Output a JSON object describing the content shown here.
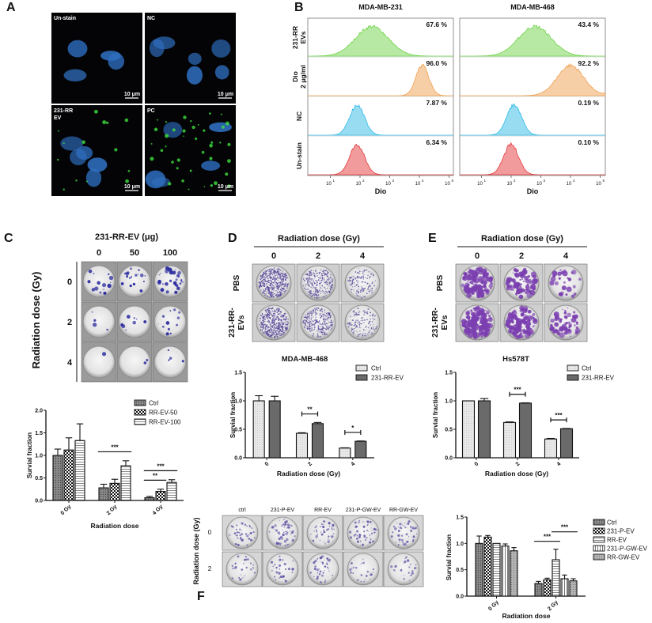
{
  "panel_labels": [
    "A",
    "B",
    "C",
    "D",
    "E",
    "F"
  ],
  "panelA": {
    "images": [
      {
        "label_lines": [
          "Un-stain"
        ],
        "scale": "10 μm",
        "ev_signal": false
      },
      {
        "label_lines": [
          "NC"
        ],
        "scale": "10 μm",
        "ev_signal": false
      },
      {
        "label_lines": [
          "231-RR",
          "EV"
        ],
        "scale": "10 μm",
        "ev_signal": true
      },
      {
        "label_lines": [
          "PC"
        ],
        "scale": "10 μm",
        "ev_signal": true
      }
    ],
    "colors": {
      "nucleus": "#2f6fc0",
      "ev": "#3ee03e",
      "background": "#040406"
    }
  },
  "panelB": {
    "columns": [
      "MDA-MB-231",
      "MDA-MB-468"
    ],
    "xlabel": "Dio",
    "tick_base": "10",
    "tick_exponents": [
      "1",
      "2",
      "3",
      "4",
      "5"
    ],
    "rows": [
      {
        "label_lines": [
          "231-RR",
          "EVs"
        ],
        "color": "#6fd34a",
        "percent": [
          "67.6 %",
          "43.4 %"
        ],
        "peak_log10": [
          2.4,
          2.8
        ]
      },
      {
        "label_lines": [
          "Dio",
          "2 μg/ml"
        ],
        "color": "#f0a050",
        "percent": [
          "96.0 %",
          "92.2 %"
        ],
        "peak_log10": [
          4.1,
          4.0
        ]
      },
      {
        "label_lines": [
          "NC"
        ],
        "color": "#31b9e6",
        "percent": [
          "7.87 %",
          "0.19 %"
        ],
        "peak_log10": [
          1.9,
          2.1
        ]
      },
      {
        "label_lines": [
          "Un-stain"
        ],
        "color": "#e5383b",
        "percent": [
          "6.34 %",
          "0.10 %"
        ],
        "peak_log10": [
          1.9,
          2.0
        ]
      }
    ]
  },
  "panelC": {
    "header": "231-RR-EV (μg)",
    "columns": [
      "0",
      "50",
      "100"
    ],
    "rows": [
      "0",
      "2",
      "4"
    ],
    "row_title": "Radiation dose (Gy)"
  },
  "panelD": {
    "header": "Radiation dose (Gy)",
    "columns": [
      "0",
      "2",
      "4"
    ],
    "rows": [
      [
        "PBS"
      ],
      [
        "231-RR-",
        "EVs"
      ]
    ]
  },
  "panelE": {
    "header": "Radiation dose (Gy)",
    "columns": [
      "0",
      "2",
      "4"
    ],
    "rows": [
      [
        "PBS"
      ],
      [
        "231-RR-",
        "EVs"
      ]
    ]
  },
  "panelF": {
    "columns": [
      "ctrl",
      "231-P-EV",
      "RR-EV",
      "231-P-GW-EV",
      "RR-GW-EV"
    ],
    "rows": [
      "0",
      "2"
    ],
    "row_title": "Radiation dose (Gy)"
  },
  "chart_data": [
    {
      "panel": "C",
      "type": "bar",
      "title": "",
      "categories": [
        "0 Gy",
        "2 Gy",
        "4 Gy"
      ],
      "xlabel": "Radiation dose",
      "ylabel": "Survial fraction",
      "ylim": [
        0,
        2.0
      ],
      "yticks": [
        "0.0",
        "0.5",
        "1.0",
        "1.5",
        "2.0"
      ],
      "legend": "top-right",
      "series": [
        {
          "name": "Ctrl",
          "values": [
            1.0,
            0.28,
            0.06
          ],
          "errors": [
            0.14,
            0.08,
            0.03
          ],
          "pattern": "dots-dark"
        },
        {
          "name": "RR-EV-50",
          "values": [
            1.12,
            0.38,
            0.2
          ],
          "errors": [
            0.27,
            0.09,
            0.05
          ],
          "pattern": "checker"
        },
        {
          "name": "RR-EV-100",
          "values": [
            1.33,
            0.77,
            0.4
          ],
          "errors": [
            0.37,
            0.11,
            0.06
          ],
          "pattern": "hstripes"
        }
      ],
      "significance": [
        {
          "category": 1,
          "from": 0,
          "to": 2,
          "label": "***"
        },
        {
          "category": 2,
          "from": 0,
          "to": 1,
          "label": "**"
        },
        {
          "category": 2,
          "from": 0,
          "to": 2,
          "label": "***"
        }
      ]
    },
    {
      "panel": "D",
      "type": "bar",
      "title": "MDA-MB-468",
      "categories": [
        "0",
        "2",
        "4"
      ],
      "xlabel": "Radiation dose (Gy)",
      "ylabel": "Survial fraction",
      "ylim": [
        0,
        1.5
      ],
      "yticks": [
        "0.0",
        "0.5",
        "1.0",
        "1.5"
      ],
      "legend": "top-right",
      "series": [
        {
          "name": "Ctrl",
          "values": [
            1.0,
            0.43,
            0.17
          ],
          "errors": [
            0.09,
            0.01,
            0.005
          ],
          "pattern": "dots-light"
        },
        {
          "name": "231-RR-EV",
          "values": [
            1.0,
            0.6,
            0.29
          ],
          "errors": [
            0.08,
            0.02,
            0.005
          ],
          "pattern": "solid-dark"
        }
      ],
      "significance": [
        {
          "category": 1,
          "from": 0,
          "to": 1,
          "label": "**"
        },
        {
          "category": 2,
          "from": 0,
          "to": 1,
          "label": "*"
        }
      ]
    },
    {
      "panel": "E",
      "type": "bar",
      "title": "Hs578T",
      "categories": [
        "0",
        "2",
        "4"
      ],
      "xlabel": "Radiation dose (Gy)",
      "ylabel": "Survial fraction",
      "ylim": [
        0,
        1.5
      ],
      "yticks": [
        "0.0",
        "0.5",
        "1.0",
        "1.5"
      ],
      "legend": "top-right",
      "series": [
        {
          "name": "Ctrl",
          "values": [
            1.0,
            0.62,
            0.33
          ],
          "errors": [
            0.0,
            0.01,
            0.01
          ],
          "pattern": "dots-light"
        },
        {
          "name": "231-RR-EV",
          "values": [
            1.0,
            0.96,
            0.51
          ],
          "errors": [
            0.04,
            0.005,
            0.005
          ],
          "pattern": "solid-dark"
        }
      ],
      "significance": [
        {
          "category": 1,
          "from": 0,
          "to": 1,
          "label": "***"
        },
        {
          "category": 2,
          "from": 0,
          "to": 1,
          "label": "***"
        }
      ]
    },
    {
      "panel": "F",
      "type": "bar",
      "title": "",
      "categories": [
        "0 Gy",
        "2 Gy"
      ],
      "xlabel": "Radiation dose",
      "ylabel": "Survial fraction",
      "ylim": [
        0,
        1.5
      ],
      "yticks": [
        "0.0",
        "0.5",
        "1.0",
        "1.5"
      ],
      "legend": "right",
      "series": [
        {
          "name": "Ctrl",
          "values": [
            1.0,
            0.24
          ],
          "errors": [
            0.14,
            0.04
          ],
          "pattern": "dots-dark"
        },
        {
          "name": "231-P-EV",
          "values": [
            1.12,
            0.31
          ],
          "errors": [
            0.03,
            0.03
          ],
          "pattern": "checker"
        },
        {
          "name": "RR-EV",
          "values": [
            1.0,
            0.69
          ],
          "errors": [
            0.0,
            0.2
          ],
          "pattern": "hstripes"
        },
        {
          "name": "231-P-GW-EV",
          "values": [
            0.95,
            0.33
          ],
          "errors": [
            0.04,
            0.07
          ],
          "pattern": "vstripes"
        },
        {
          "name": "RR-GW-EV",
          "values": [
            0.86,
            0.29
          ],
          "errors": [
            0.06,
            0.04
          ],
          "pattern": "dots-mid"
        }
      ],
      "significance": [
        {
          "category": 1,
          "from": 0,
          "to": 2,
          "label": "***"
        },
        {
          "category": 1,
          "from": 2,
          "to": 4,
          "label": "***"
        }
      ]
    }
  ]
}
